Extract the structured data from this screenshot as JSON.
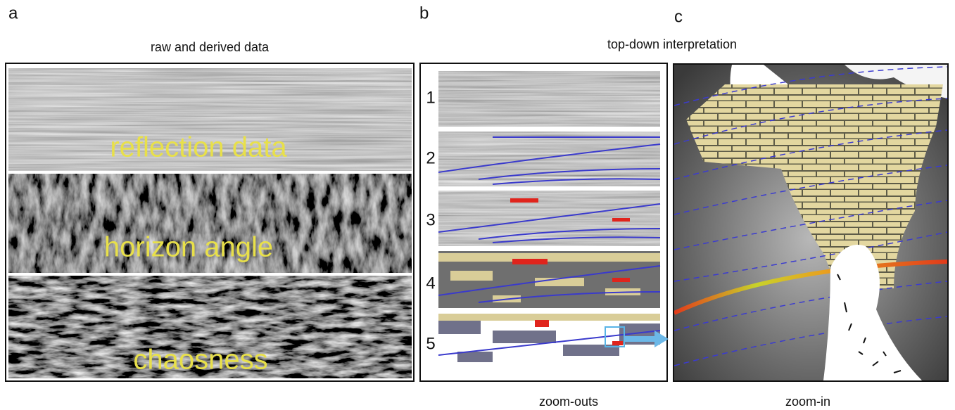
{
  "panel_a": {
    "letter": "a",
    "title": "raw and derived data",
    "layers": [
      "reflection data",
      "horizon angle",
      "chaosness"
    ]
  },
  "panel_b": {
    "letter": "b",
    "thumbnails": [
      "1",
      "2",
      "3",
      "4",
      "5"
    ],
    "caption": "zoom-outs"
  },
  "panel_c": {
    "letter": "c",
    "caption": "zoom-in"
  },
  "shared_title": "top-down interpretation"
}
